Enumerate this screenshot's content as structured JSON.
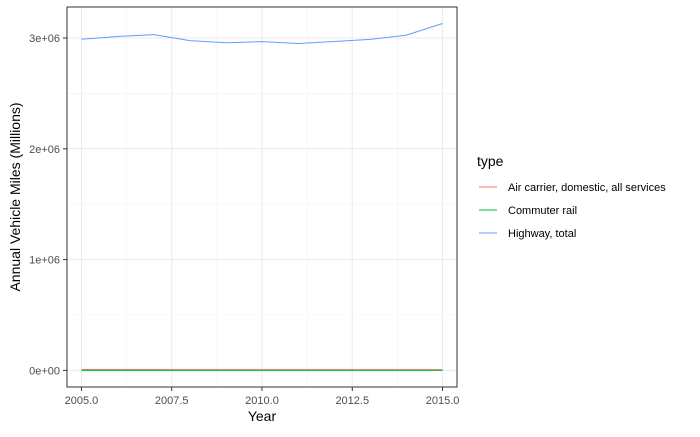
{
  "chart_data": {
    "type": "line",
    "title": "",
    "xlabel": "Year",
    "ylabel": "Annual Vehicle Miles (Millions)",
    "xlim": [
      2004.6,
      2015.4
    ],
    "ylim": [
      -150000,
      3280000
    ],
    "x_ticks": [
      2005.0,
      2007.5,
      2010.0,
      2012.5,
      2015.0
    ],
    "x_tick_labels": [
      "2005.0",
      "2007.5",
      "2010.0",
      "2012.5",
      "2015.0"
    ],
    "y_ticks": [
      0,
      1000000,
      2000000,
      3000000
    ],
    "y_tick_labels": [
      "0e+00",
      "1e+06",
      "2e+06",
      "3e+06"
    ],
    "grid": true,
    "legend": {
      "title": "type",
      "position": "right"
    },
    "x": [
      2005,
      2006,
      2007,
      2008,
      2009,
      2010,
      2011,
      2012,
      2013,
      2014,
      2015
    ],
    "series": [
      {
        "name": "Air carrier, domestic, all services",
        "color": "#F8766D",
        "values": [
          7900,
          7700,
          7500,
          7200,
          6700,
          6500,
          6600,
          6700,
          6900,
          7000,
          7200
        ]
      },
      {
        "name": "Commuter rail",
        "color": "#00BA38",
        "values": [
          300,
          320,
          330,
          340,
          345,
          350,
          355,
          360,
          370,
          380,
          385
        ]
      },
      {
        "name": "Highway, total",
        "color": "#619CFF",
        "values": [
          2989000,
          3014000,
          3031000,
          2977000,
          2957000,
          2967000,
          2950000,
          2969000,
          2988000,
          3026000,
          3131000
        ]
      }
    ]
  }
}
